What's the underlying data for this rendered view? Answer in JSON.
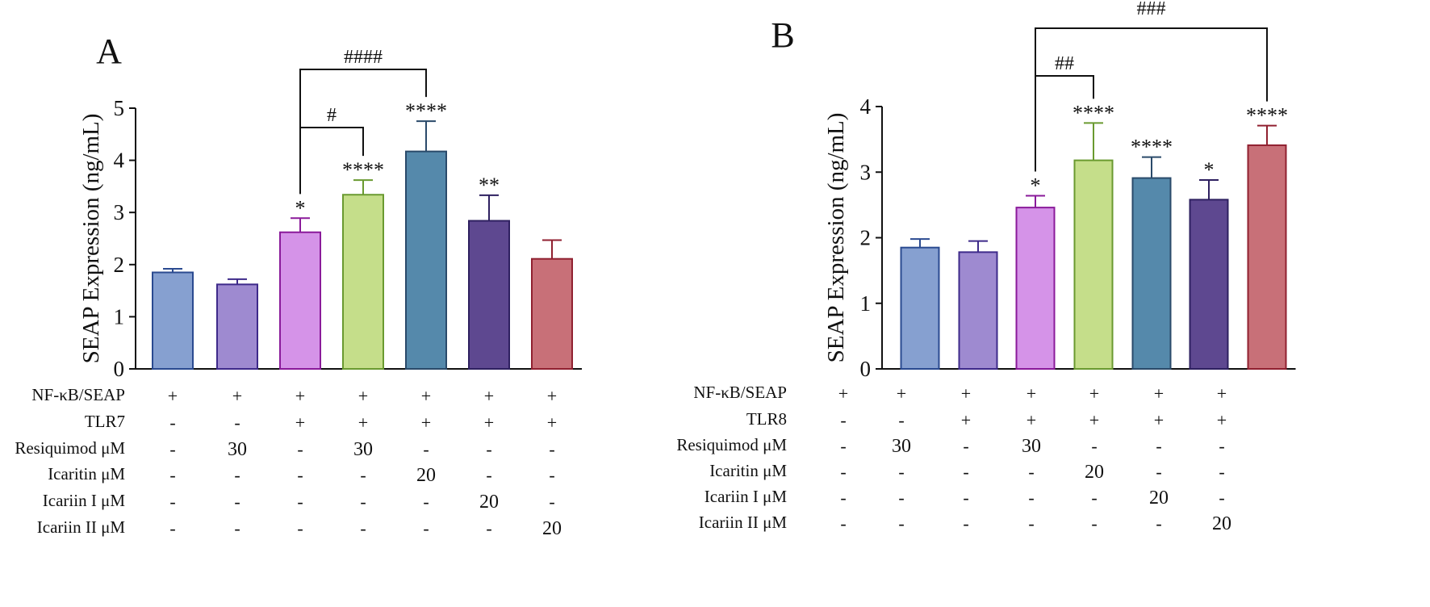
{
  "chart_data": [
    {
      "type": "bar",
      "panel_label": "A",
      "ylabel": "SEAP Expression (ng/mL)",
      "ylim": [
        0,
        5
      ],
      "yticks": [
        "0",
        "1",
        "2",
        "3",
        "4",
        "5"
      ],
      "values": [
        1.85,
        1.62,
        2.62,
        3.34,
        4.17,
        2.84,
        2.11
      ],
      "errors": [
        0.07,
        0.1,
        0.27,
        0.28,
        0.58,
        0.49,
        0.36
      ],
      "sig": [
        "",
        "",
        "*",
        "****",
        "****",
        "**",
        ""
      ],
      "colors": [
        "#86a0d0",
        "#9e8ad0",
        "#d593e8",
        "#c5de8a",
        "#5589ab",
        "#5e4890",
        "#c87078"
      ],
      "edges": [
        "#2a4a90",
        "#3e2a8a",
        "#8a1a9a",
        "#6a9a30",
        "#2a4a6a",
        "#2e2060",
        "#902030"
      ],
      "brackets": [
        {
          "from": 3,
          "to": 4,
          "label": "#"
        },
        {
          "from": 3,
          "to": 5,
          "label": "####"
        }
      ],
      "table": {
        "rows": [
          {
            "label": "NF-κB/SEAP",
            "cells": [
              "+",
              "+",
              "+",
              "+",
              "+",
              "+",
              "+"
            ]
          },
          {
            "label": "TLR7",
            "cells": [
              "-",
              "-",
              "+",
              "+",
              "+",
              "+",
              "+"
            ]
          },
          {
            "label": "Resiquimod μM",
            "cells": [
              "-",
              "30",
              "-",
              "30",
              "-",
              "-",
              "-"
            ]
          },
          {
            "label": "Icaritin μM",
            "cells": [
              "-",
              "-",
              "-",
              "-",
              "20",
              "-",
              "-"
            ]
          },
          {
            "label": "Icariin I μM",
            "cells": [
              "-",
              "-",
              "-",
              "-",
              "-",
              "20",
              "-"
            ]
          },
          {
            "label": "Icariin II μM",
            "cells": [
              "-",
              "-",
              "-",
              "-",
              "-",
              "-",
              "20"
            ]
          }
        ]
      }
    },
    {
      "type": "bar",
      "panel_label": "B",
      "ylabel": "SEAP Expression (ng/mL)",
      "ylim": [
        0,
        4
      ],
      "yticks": [
        "0",
        "1",
        "2",
        "3",
        "4"
      ],
      "values": [
        1.85,
        1.78,
        2.46,
        3.18,
        2.91,
        2.58,
        3.41
      ],
      "errors": [
        0.13,
        0.17,
        0.18,
        0.57,
        0.32,
        0.3,
        0.3
      ],
      "sig": [
        "",
        "",
        "*",
        "****",
        "****",
        "*",
        "****"
      ],
      "colors": [
        "#86a0d0",
        "#9e8ad0",
        "#d593e8",
        "#c5de8a",
        "#5589ab",
        "#5e4890",
        "#c87078"
      ],
      "edges": [
        "#2a4a90",
        "#3e2a8a",
        "#8a1a9a",
        "#6a9a30",
        "#2a4a6a",
        "#2e2060",
        "#902030"
      ],
      "brackets": [
        {
          "from": 3,
          "to": 4,
          "label": "##"
        },
        {
          "from": 3,
          "to": 7,
          "label": "###"
        }
      ],
      "table": {
        "rows": [
          {
            "label": "NF-κB/SEAP",
            "cells": [
              "+",
              "+",
              "+",
              "+",
              "+",
              "+",
              "+"
            ]
          },
          {
            "label": "TLR8",
            "cells": [
              "-",
              "-",
              "+",
              "+",
              "+",
              "+",
              "+"
            ]
          },
          {
            "label": "Resiquimod μM",
            "cells": [
              "-",
              "30",
              "-",
              "30",
              "-",
              "-",
              "-"
            ]
          },
          {
            "label": "Icaritin μM",
            "cells": [
              "-",
              "-",
              "-",
              "-",
              "20",
              "-",
              "-"
            ]
          },
          {
            "label": "Icariin I μM",
            "cells": [
              "-",
              "-",
              "-",
              "-",
              "-",
              "20",
              "-"
            ]
          },
          {
            "label": "Icariin II μM",
            "cells": [
              "-",
              "-",
              "-",
              "-",
              "-",
              "-",
              "20"
            ]
          }
        ]
      }
    }
  ]
}
